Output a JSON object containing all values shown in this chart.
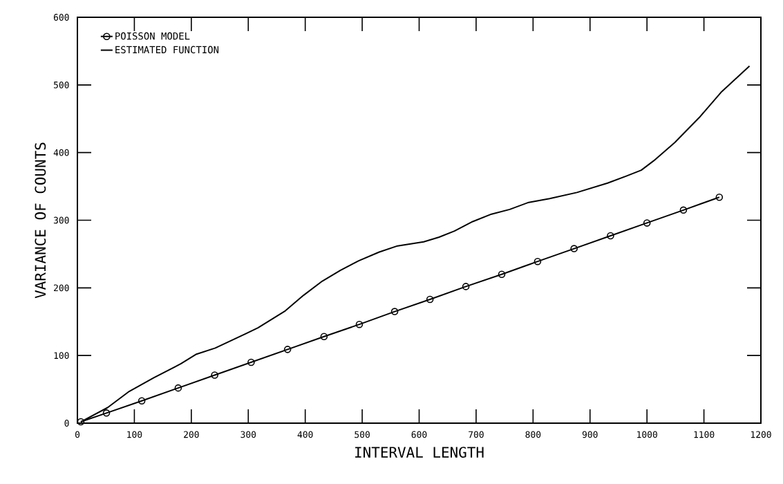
{
  "chart_data": {
    "type": "line",
    "xlabel": "INTERVAL LENGTH",
    "ylabel": "VARIANCE OF COUNTS",
    "xlim": [
      0,
      1200
    ],
    "ylim": [
      0,
      600
    ],
    "xticks": [
      0,
      100,
      200,
      300,
      400,
      500,
      600,
      700,
      800,
      900,
      1000,
      1100,
      1200
    ],
    "yticks": [
      0,
      100,
      200,
      300,
      400,
      500,
      600
    ],
    "legend": "top left",
    "grid": false,
    "series": [
      {
        "name": "POISSON MODEL",
        "color": "#000000",
        "marker": "circle",
        "x": [
          6,
          51,
          113,
          177,
          241,
          305,
          369,
          433,
          495,
          557,
          619,
          682,
          745,
          808,
          872,
          936,
          1000,
          1064,
          1127
        ],
        "values": [
          2,
          15,
          33,
          52,
          71,
          90,
          109,
          128,
          146,
          165,
          183,
          202,
          220,
          239,
          258,
          277,
          296,
          315,
          334
        ]
      },
      {
        "name": "ESTIMATED FUNCTION",
        "color": "#000000",
        "marker": "none",
        "x": [
          6,
          53,
          91,
          134,
          182,
          209,
          242,
          295,
          317,
          365,
          397,
          430,
          462,
          494,
          530,
          562,
          608,
          635,
          662,
          694,
          727,
          759,
          791,
          829,
          877,
          931,
          963,
          990,
          1012,
          1049,
          1092,
          1130,
          1180
        ],
        "values": [
          2,
          23,
          47,
          67,
          88,
          102,
          111,
          132,
          141,
          166,
          189,
          210,
          226,
          240,
          253,
          262,
          268,
          275,
          284,
          298,
          309,
          316,
          326,
          332,
          341,
          355,
          365,
          374,
          388,
          415,
          452,
          489,
          528
        ]
      }
    ]
  }
}
